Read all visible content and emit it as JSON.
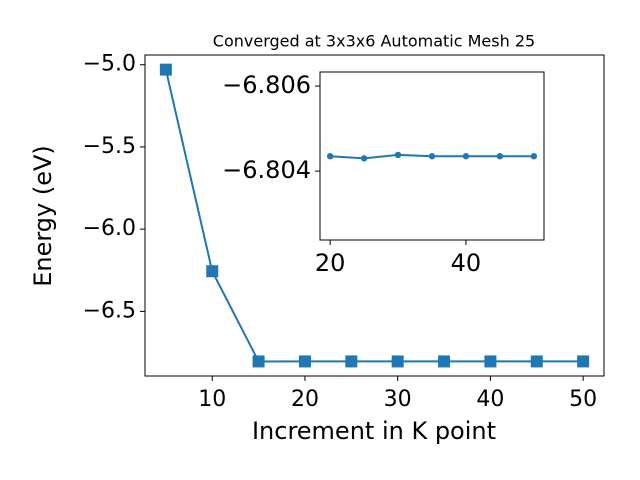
{
  "chart_data": [
    {
      "type": "line",
      "title": "Converged at 3x3x6 Automatic Mesh 25",
      "x_label": "Increment in K point",
      "y_label": "Energy (eV)",
      "x": [
        5,
        10,
        15,
        20,
        25,
        30,
        35,
        40,
        45,
        50
      ],
      "values": [
        -5.03,
        -6.256,
        -6.8045,
        -6.80435,
        -6.8043,
        -6.80438,
        -6.80435,
        -6.80435,
        -6.80435,
        -6.80435
      ],
      "color": "#1f77b4",
      "marker": "square",
      "xlim": [
        2.75,
        52.25
      ],
      "xticks": [
        10,
        20,
        30,
        40,
        50
      ],
      "ylim": [
        -6.893,
        -4.941
      ],
      "yticks": [
        {
          "value": -6.5,
          "label": "−6.5"
        },
        {
          "value": -6.0,
          "label": "−6.0"
        },
        {
          "value": -5.5,
          "label": "−5.5"
        },
        {
          "value": -5.0,
          "label": "−5.0"
        }
      ]
    },
    {
      "type": "line",
      "x": [
        20,
        25,
        30,
        35,
        40,
        45,
        50
      ],
      "values": [
        -6.80435,
        -6.8043,
        -6.80438,
        -6.80435,
        -6.80435,
        -6.80435,
        -6.80435
      ],
      "color": "#1f77b4",
      "marker": "circle",
      "xlim": [
        18.5,
        51.5
      ],
      "xticks": [
        20,
        40
      ],
      "ylim": [
        -6.80238,
        -6.80633
      ],
      "yticks": [
        {
          "value": -6.804,
          "label": "−6.804"
        },
        {
          "value": -6.806,
          "label": "−6.806"
        }
      ]
    }
  ]
}
